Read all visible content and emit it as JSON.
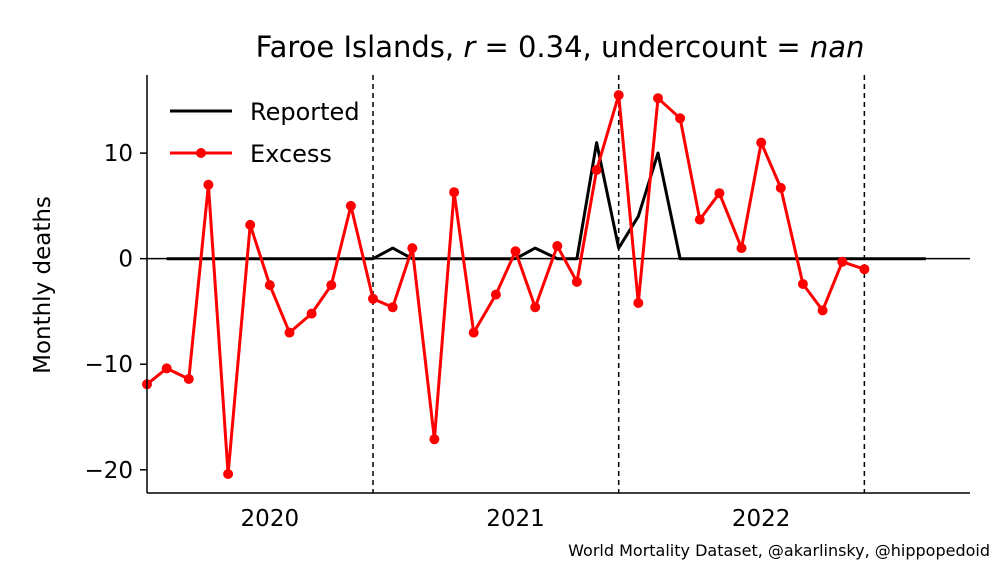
{
  "chart_data": {
    "type": "line",
    "title": {
      "prefix": "Faroe Islands, ",
      "r_symbol": "r",
      "r_value": " = 0.34, undercount",
      "eq": " = ",
      "undercount_value": "nan"
    },
    "ylabel": "Monthly deaths",
    "ylim": [
      -22.2,
      17.4
    ],
    "xlim": [
      2019.5,
      2022.85
    ],
    "yticks": [
      {
        "value": 10,
        "label": "10"
      },
      {
        "value": 0,
        "label": "0"
      },
      {
        "value": -10,
        "label": "−10"
      },
      {
        "value": -20,
        "label": "−20"
      }
    ],
    "xtick_labels": [
      {
        "x": 2020.0,
        "label": "2020"
      },
      {
        "x": 2021.0,
        "label": "2021"
      },
      {
        "x": 2022.0,
        "label": "2022"
      }
    ],
    "vlines": [
      2020.42,
      2021.42,
      2022.42
    ],
    "zero_line": true,
    "grid": false,
    "legend_position": "top-left",
    "series": [
      {
        "name": "Reported",
        "color": "#000000",
        "marker": "none",
        "x": [
          2019.58,
          2019.67,
          2019.75,
          2019.83,
          2019.92,
          2020.0,
          2020.08,
          2020.17,
          2020.25,
          2020.33,
          2020.42,
          2020.5,
          2020.58,
          2020.67,
          2020.75,
          2020.83,
          2020.92,
          2021.0,
          2021.08,
          2021.17,
          2021.25,
          2021.33,
          2021.42,
          2021.5,
          2021.58,
          2021.67,
          2021.75,
          2021.83,
          2021.92,
          2022.0,
          2022.08,
          2022.17,
          2022.25,
          2022.33,
          2022.42,
          2022.5,
          2022.58,
          2022.67
        ],
        "y": [
          0,
          0,
          0,
          0,
          0,
          0,
          0,
          0,
          0,
          0,
          0,
          1,
          0,
          0,
          0,
          0,
          0,
          0,
          1,
          0,
          0,
          11,
          1,
          4,
          10,
          0,
          0,
          0,
          0,
          0,
          0,
          0,
          0,
          0,
          0,
          0,
          0,
          0
        ]
      },
      {
        "name": "Excess",
        "color": "#ff0000",
        "marker": "circle",
        "x": [
          2019.5,
          2019.58,
          2019.67,
          2019.75,
          2019.83,
          2019.92,
          2020.0,
          2020.08,
          2020.17,
          2020.25,
          2020.33,
          2020.42,
          2020.5,
          2020.58,
          2020.67,
          2020.75,
          2020.83,
          2020.92,
          2021.0,
          2021.08,
          2021.17,
          2021.25,
          2021.33,
          2021.42,
          2021.5,
          2021.58,
          2021.67,
          2021.75,
          2021.83,
          2021.92,
          2022.0,
          2022.08,
          2022.17,
          2022.25,
          2022.33,
          2022.42
        ],
        "y": [
          -11.9,
          -10.4,
          -11.4,
          7.0,
          -20.4,
          3.2,
          -2.5,
          -7.0,
          -5.2,
          -2.5,
          5.0,
          -3.8,
          -4.6,
          1.0,
          -17.1,
          6.3,
          -7.0,
          -3.4,
          0.7,
          -4.6,
          1.2,
          -2.2,
          8.4,
          15.5,
          -4.2,
          15.2,
          13.3,
          3.7,
          6.2,
          1.0,
          11.0,
          6.7,
          -2.4,
          -4.9,
          -0.3,
          -1.0
        ]
      }
    ],
    "credit": "World Mortality Dataset, @akarlinsky, @hippopedoid"
  }
}
